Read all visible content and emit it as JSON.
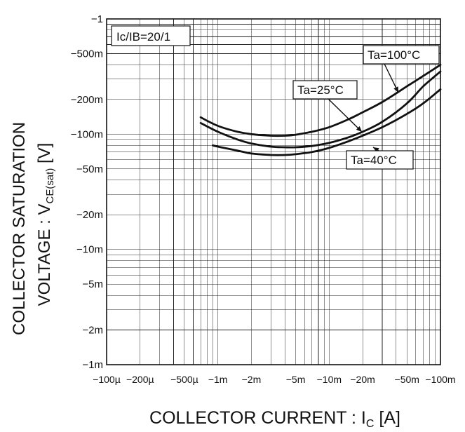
{
  "chart_data": {
    "type": "line",
    "xscale": "log",
    "yscale": "log",
    "xlim": [
      -0.0001,
      -0.1
    ],
    "ylim": [
      -0.001,
      -1
    ],
    "grid": true,
    "xlabel_main": "COLLECTOR CURRENT : I",
    "xlabel_sub": "C",
    "xlabel_unit": " [A]",
    "ylabel_line1": "COLLECTOR SATURATION",
    "ylabel_line2_main": "VOLTAGE : V",
    "ylabel_line2_sub": "CE(sat)",
    "ylabel_line2_unit": " [V]",
    "condition_label": "Ic/IB=20/1",
    "x_tick_labels": [
      "−100µ",
      "−200µ",
      "−500µ",
      "−1m",
      "−2m",
      "−5m",
      "−10m",
      "−20m",
      "−50m",
      "−100m"
    ],
    "y_tick_labels": [
      "−1",
      "−500m",
      "−200m",
      "−100m",
      "−50m",
      "−20m",
      "−10m",
      "−5m",
      "−2m",
      "−1m"
    ],
    "series": [
      {
        "name": "Ta=100°C",
        "x": [
          -0.0009,
          -0.001,
          -0.0015,
          -0.002,
          -0.003,
          -0.004,
          -0.005,
          -0.007,
          -0.01,
          -0.015,
          -0.02,
          -0.03,
          -0.05,
          -0.07,
          -0.1
        ],
        "y": [
          -0.08,
          -0.078,
          -0.072,
          -0.068,
          -0.066,
          -0.066,
          -0.067,
          -0.07,
          -0.076,
          -0.087,
          -0.097,
          -0.115,
          -0.15,
          -0.185,
          -0.245
        ]
      },
      {
        "name": "Ta=25°C",
        "x": [
          -0.0007,
          -0.001,
          -0.0015,
          -0.002,
          -0.003,
          -0.004,
          -0.005,
          -0.007,
          -0.01,
          -0.015,
          -0.02,
          -0.03,
          -0.05,
          -0.07,
          -0.1
        ],
        "y": [
          -0.125,
          -0.105,
          -0.09,
          -0.083,
          -0.078,
          -0.077,
          -0.077,
          -0.079,
          -0.084,
          -0.094,
          -0.105,
          -0.128,
          -0.185,
          -0.26,
          -0.35
        ]
      },
      {
        "name": "Ta=40°C",
        "x": [
          -0.0007,
          -0.001,
          -0.0015,
          -0.002,
          -0.003,
          -0.004,
          -0.005,
          -0.007,
          -0.01,
          -0.015,
          -0.02,
          -0.03,
          -0.05,
          -0.07,
          -0.1
        ],
        "y": [
          -0.14,
          -0.118,
          -0.105,
          -0.1,
          -0.097,
          -0.097,
          -0.099,
          -0.105,
          -0.115,
          -0.135,
          -0.155,
          -0.19,
          -0.26,
          -0.32,
          -0.4
        ]
      }
    ],
    "annotations": [
      {
        "text": "Ta=100°C",
        "series": "Ta=100°C"
      },
      {
        "text": "Ta=25°C",
        "series": "Ta=25°C"
      },
      {
        "text": "Ta=40°C",
        "series": "Ta=40°C"
      }
    ]
  }
}
